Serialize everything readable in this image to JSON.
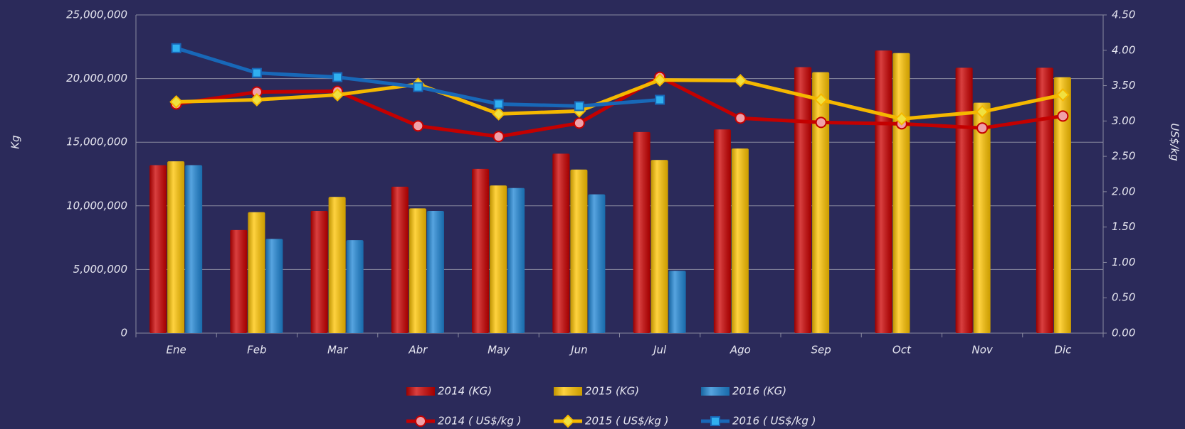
{
  "chart_data": {
    "type": "combo",
    "y_label": "Kg",
    "y2_label": "US$/kg",
    "categories": [
      "Ene",
      "Feb",
      "Mar",
      "Abr",
      "May",
      "Jun",
      "Jul",
      "Ago",
      "Sep",
      "Oct",
      "Nov",
      "Dic"
    ],
    "ylim": [
      0,
      25000000
    ],
    "yticks": [
      0,
      {
        "value": 5000000,
        "label": "5,000,000"
      },
      {
        "value": 10000000,
        "label": "10,000,000"
      },
      {
        "value": 15000000,
        "label": "15,000,000"
      },
      {
        "value": 20000000,
        "label": "20,000,000"
      },
      {
        "value": 25000000,
        "label": "25,000,000"
      }
    ],
    "y2lim": [
      0,
      4.5
    ],
    "y2ticks": [
      {
        "value": 0,
        "label": "0.00"
      },
      {
        "value": 0.5,
        "label": "0.50"
      },
      {
        "value": 1,
        "label": "1.00"
      },
      {
        "value": 1.5,
        "label": "1.50"
      },
      {
        "value": 2,
        "label": "2.00"
      },
      {
        "value": 2.5,
        "label": "2.50"
      },
      {
        "value": 3,
        "label": "3.00"
      },
      {
        "value": 3.5,
        "label": "3.50"
      },
      {
        "value": 4,
        "label": "4.00"
      },
      {
        "value": 4.5,
        "label": "4.50"
      }
    ],
    "grid": true,
    "series": [
      {
        "name": "2014 (KG)",
        "type": "bar",
        "color": "#cc0000",
        "values": [
          13200000,
          8100000,
          9600000,
          11500000,
          12900000,
          14100000,
          15800000,
          16000000,
          20900000,
          22200000,
          20850000,
          20850000
        ]
      },
      {
        "name": "2015 (KG)",
        "type": "bar",
        "color": "#ffc400",
        "values": [
          13500000,
          9500000,
          10700000,
          9800000,
          11600000,
          12850000,
          13600000,
          14500000,
          20500000,
          22000000,
          18100000,
          20100000
        ]
      },
      {
        "name": "2016 (KG)",
        "type": "bar",
        "color": "#1f86d6",
        "values": [
          13200000,
          7400000,
          7300000,
          9600000,
          11400000,
          10900000,
          4900000,
          null,
          null,
          null,
          null,
          null
        ]
      },
      {
        "name": "2014 ( US$/kg )",
        "type": "line",
        "axis": "y2",
        "marker": "circle",
        "color": "#c40000",
        "values": [
          3.24,
          3.41,
          3.42,
          2.93,
          2.78,
          2.97,
          3.62,
          3.04,
          2.98,
          2.96,
          2.9,
          3.07
        ]
      },
      {
        "name": "2015 ( US$/kg )",
        "type": "line",
        "axis": "y2",
        "marker": "diamond",
        "color": "#f5b800",
        "values": [
          3.27,
          3.3,
          3.37,
          3.52,
          3.1,
          3.14,
          3.58,
          3.57,
          3.3,
          3.03,
          3.13,
          3.37
        ]
      },
      {
        "name": "2016 ( US$/kg )",
        "type": "line",
        "axis": "y2",
        "marker": "square",
        "color": "#1868b8",
        "values": [
          4.03,
          3.68,
          3.62,
          3.48,
          3.24,
          3.21,
          3.3,
          null,
          null,
          null,
          null,
          null
        ]
      }
    ]
  }
}
